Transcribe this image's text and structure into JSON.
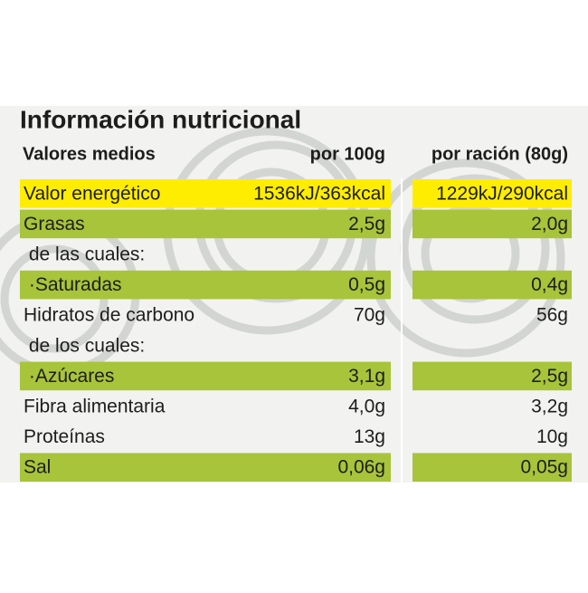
{
  "header": {
    "title": "Información nutricional",
    "columns": [
      "Valores medios",
      "por 100g",
      "por ración (80g)"
    ]
  },
  "table": {
    "rows": [
      {
        "label": "Valor energético",
        "per_100g": "1536kJ/363kcal",
        "per_serving": "1229kJ/290kcal",
        "color": "#ffed00"
      },
      {
        "label": "Grasas",
        "per_100g": "2,5g",
        "per_serving": "2,0g",
        "color": "#a8c43a"
      },
      {
        "label": " de las cuales:"
      },
      {
        "label": " ·Saturadas",
        "per_100g": "0,5g",
        "per_serving": "0,4g",
        "color": "#a8c43a"
      },
      {
        "label": "Hidratos de carbono",
        "per_100g": "70g",
        "per_serving": "56g"
      },
      {
        "label": " de los cuales:"
      },
      {
        "label": " ·Azúcares",
        "per_100g": "3,1g",
        "per_serving": "2,5g",
        "color": "#a8c43a"
      },
      {
        "label": "Fibra alimentaria",
        "per_100g": "4,0g",
        "per_serving": "3,2g"
      },
      {
        "label": "Proteínas",
        "per_100g": "13g",
        "per_serving": "10g"
      },
      {
        "label": "Sal",
        "per_100g": "0,06g",
        "per_serving": "0,05g",
        "color": "#a8c43a"
      }
    ]
  }
}
